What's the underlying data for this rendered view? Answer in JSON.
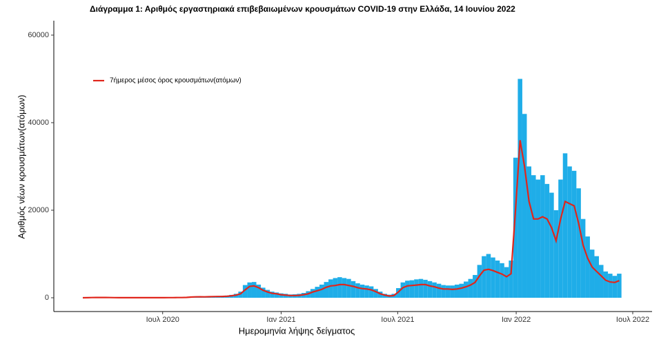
{
  "chart_data": {
    "type": "bar-line",
    "title": "Διάγραμμα 1: Αριθμός εργαστηριακά επιβεβαιωμένων κρουσμάτων COVID-19 στην Ελλάδα, 14 Ιουνίου 2022",
    "xlabel": "Ημερομηνία λήψης δείγματος",
    "ylabel": "Αριθμός νέων κρουσμάτων(ατόμων)",
    "x": [
      "2020-02-28",
      "2020-03-06",
      "2020-03-13",
      "2020-03-20",
      "2020-03-27",
      "2020-04-03",
      "2020-04-10",
      "2020-04-17",
      "2020-04-24",
      "2020-05-01",
      "2020-05-08",
      "2020-05-15",
      "2020-05-22",
      "2020-05-29",
      "2020-06-05",
      "2020-06-12",
      "2020-06-19",
      "2020-06-26",
      "2020-07-03",
      "2020-07-10",
      "2020-07-17",
      "2020-07-24",
      "2020-07-31",
      "2020-08-07",
      "2020-08-14",
      "2020-08-21",
      "2020-08-28",
      "2020-09-04",
      "2020-09-11",
      "2020-09-18",
      "2020-09-25",
      "2020-10-02",
      "2020-10-09",
      "2020-10-16",
      "2020-10-23",
      "2020-10-30",
      "2020-11-06",
      "2020-11-13",
      "2020-11-20",
      "2020-11-27",
      "2020-12-04",
      "2020-12-11",
      "2020-12-18",
      "2020-12-25",
      "2021-01-01",
      "2021-01-08",
      "2021-01-15",
      "2021-01-22",
      "2021-01-29",
      "2021-02-05",
      "2021-02-12",
      "2021-02-19",
      "2021-02-26",
      "2021-03-05",
      "2021-03-12",
      "2021-03-19",
      "2021-03-26",
      "2021-04-02",
      "2021-04-09",
      "2021-04-16",
      "2021-04-23",
      "2021-04-30",
      "2021-05-07",
      "2021-05-14",
      "2021-05-21",
      "2021-05-28",
      "2021-06-04",
      "2021-06-11",
      "2021-06-18",
      "2021-06-25",
      "2021-07-02",
      "2021-07-09",
      "2021-07-16",
      "2021-07-23",
      "2021-07-30",
      "2021-08-06",
      "2021-08-13",
      "2021-08-20",
      "2021-08-27",
      "2021-09-03",
      "2021-09-10",
      "2021-09-17",
      "2021-09-24",
      "2021-10-01",
      "2021-10-08",
      "2021-10-15",
      "2021-10-22",
      "2021-10-29",
      "2021-11-05",
      "2021-11-12",
      "2021-11-19",
      "2021-11-26",
      "2021-12-03",
      "2021-12-10",
      "2021-12-17",
      "2021-12-24",
      "2021-12-31",
      "2022-01-07",
      "2022-01-14",
      "2022-01-21",
      "2022-01-28",
      "2022-02-04",
      "2022-02-11",
      "2022-02-18",
      "2022-02-25",
      "2022-03-04",
      "2022-03-11",
      "2022-03-18",
      "2022-03-25",
      "2022-04-01",
      "2022-04-08",
      "2022-04-15",
      "2022-04-22",
      "2022-04-29",
      "2022-05-06",
      "2022-05-13",
      "2022-05-20",
      "2022-05-27",
      "2022-06-03",
      "2022-06-10"
    ],
    "bars": {
      "color": "#1fade8",
      "values": [
        10,
        40,
        70,
        90,
        100,
        80,
        70,
        40,
        30,
        20,
        15,
        15,
        15,
        15,
        20,
        25,
        20,
        25,
        30,
        35,
        45,
        50,
        60,
        120,
        220,
        280,
        300,
        280,
        320,
        360,
        400,
        450,
        500,
        650,
        900,
        1400,
        2900,
        3500,
        3600,
        3000,
        2300,
        1800,
        1400,
        1200,
        1000,
        900,
        750,
        800,
        900,
        1100,
        1500,
        2000,
        2500,
        3000,
        3600,
        4200,
        4500,
        4700,
        4500,
        4300,
        3800,
        3300,
        3000,
        2800,
        2600,
        2000,
        1400,
        900,
        700,
        900,
        2200,
        3500,
        3900,
        4000,
        4200,
        4300,
        4100,
        3800,
        3500,
        3200,
        2900,
        2800,
        2800,
        3000,
        3200,
        3700,
        4300,
        5200,
        7500,
        9500,
        10000,
        9200,
        8500,
        7900,
        7000,
        8500,
        32000,
        50000,
        42000,
        30000,
        28000,
        27000,
        28000,
        26000,
        24000,
        20000,
        27000,
        33000,
        30000,
        29000,
        25000,
        18000,
        14000,
        11000,
        9500,
        7500,
        6000,
        5500,
        5000,
        5500
      ]
    },
    "series": [
      {
        "name": "7ήμερος μέσος όρος κρουσμάτων(ατόμων)",
        "color": "#e0251b",
        "values": [
          5,
          20,
          40,
          60,
          70,
          60,
          50,
          30,
          20,
          15,
          10,
          10,
          10,
          10,
          10,
          15,
          15,
          15,
          20,
          25,
          30,
          40,
          40,
          80,
          150,
          200,
          220,
          200,
          230,
          260,
          280,
          300,
          350,
          450,
          600,
          900,
          1800,
          2600,
          2700,
          2300,
          1700,
          1300,
          1000,
          900,
          700,
          600,
          500,
          500,
          550,
          700,
          900,
          1300,
          1600,
          1900,
          2400,
          2700,
          2800,
          3000,
          3000,
          2800,
          2600,
          2300,
          2100,
          2000,
          1800,
          1400,
          900,
          600,
          400,
          500,
          1300,
          2300,
          2700,
          2800,
          2900,
          3000,
          3000,
          2700,
          2500,
          2200,
          2000,
          2000,
          1900,
          2000,
          2200,
          2500,
          2900,
          3500,
          5000,
          6300,
          6500,
          6200,
          5800,
          5400,
          4800,
          5500,
          20000,
          36000,
          30000,
          22000,
          18000,
          18000,
          18500,
          18000,
          16000,
          13000,
          18000,
          22000,
          21500,
          21000,
          17000,
          12000,
          9000,
          7000,
          6000,
          5000,
          4000,
          3600,
          3500,
          3900
        ]
      }
    ],
    "xlim": [
      "2020-01-14",
      "2022-07-31"
    ],
    "xticks": [
      {
        "value": "2020-07-01",
        "label": "Ιουλ 2020"
      },
      {
        "value": "2021-01-01",
        "label": "Ιαν 2021"
      },
      {
        "value": "2021-07-01",
        "label": "Ιουλ 2021"
      },
      {
        "value": "2022-01-01",
        "label": "Ιαν 2022"
      },
      {
        "value": "2022-07-01",
        "label": "Ιουλ 2022"
      }
    ],
    "ylim": [
      -3150,
      63300
    ],
    "yticks": [
      0,
      20000,
      40000,
      60000
    ],
    "legend": "top-left"
  }
}
